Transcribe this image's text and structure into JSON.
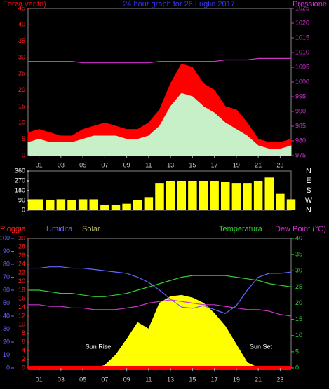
{
  "chart_data": [
    {
      "type": "line",
      "title": "24 hour graph for 26 Luglio 2017",
      "y_label": "Forza vento)",
      "y2_label": "Pressione",
      "x": [
        0,
        1,
        2,
        3,
        4,
        5,
        6,
        7,
        8,
        9,
        10,
        11,
        12,
        13,
        14,
        15,
        16,
        17,
        18,
        19,
        20,
        21,
        22,
        23,
        24
      ],
      "xlim": [
        0,
        24
      ],
      "xticks": [
        {
          "value": 1,
          "label": "01"
        },
        {
          "value": 3,
          "label": "03"
        },
        {
          "value": 5,
          "label": "05"
        },
        {
          "value": 7,
          "label": "07"
        },
        {
          "value": 9,
          "label": "09"
        },
        {
          "value": 11,
          "label": "11"
        },
        {
          "value": 13,
          "label": "13"
        },
        {
          "value": 15,
          "label": "15"
        },
        {
          "value": 17,
          "label": "17"
        },
        {
          "value": 19,
          "label": "19"
        },
        {
          "value": 21,
          "label": "21"
        },
        {
          "value": 23,
          "label": "23"
        }
      ],
      "ylim": [
        0,
        45
      ],
      "yticks": [
        0,
        5,
        10,
        15,
        20,
        25,
        30,
        35,
        40,
        45
      ],
      "y2lim": [
        975,
        1025
      ],
      "y2ticks": [
        975,
        980,
        985,
        990,
        995,
        1000,
        1005,
        1010,
        1015,
        1020,
        1025
      ],
      "series": [
        {
          "type": "area",
          "color": "#ff0000",
          "values": [
            7,
            8,
            7,
            6,
            6,
            8,
            9,
            10,
            9,
            8,
            8,
            10,
            14,
            22,
            28,
            27,
            22,
            20,
            15,
            14,
            10,
            5,
            4,
            4,
            5
          ]
        },
        {
          "type": "area",
          "color": "#c8f0c8",
          "values": [
            4,
            5,
            4,
            4,
            4,
            5,
            6,
            6,
            6,
            5,
            5,
            6,
            9,
            15,
            19,
            18,
            15,
            13,
            10,
            8,
            6,
            3,
            2,
            2,
            3
          ]
        },
        {
          "type": "line",
          "axis": "y2",
          "color": "#cc33cc",
          "values": [
            1007,
            1007,
            1007,
            1007,
            1007,
            1006.5,
            1006.5,
            1006.5,
            1006.5,
            1006.5,
            1006.5,
            1006.5,
            1007,
            1007,
            1007,
            1007,
            1007,
            1007,
            1007.5,
            1007.5,
            1007.5,
            1008,
            1008,
            1008,
            1008
          ]
        }
      ]
    },
    {
      "type": "bar",
      "compass_labels": [
        "N",
        "W",
        "S",
        "E",
        "N"
      ],
      "x": [
        0,
        1,
        2,
        3,
        4,
        5,
        6,
        7,
        8,
        9,
        10,
        11,
        12,
        13,
        14,
        15,
        16,
        17,
        18,
        19,
        20,
        21,
        22,
        23,
        24
      ],
      "xlim": [
        0,
        24
      ],
      "ylim": [
        0,
        360
      ],
      "yticks": [
        0,
        90,
        180,
        270,
        360
      ],
      "series": [
        {
          "type": "bar",
          "color": "#ffff00",
          "values": [
            100,
            100,
            95,
            100,
            90,
            100,
            100,
            50,
            50,
            60,
            90,
            120,
            250,
            270,
            270,
            270,
            270,
            270,
            260,
            250,
            250,
            270,
            300,
            150,
            100
          ]
        }
      ]
    },
    {
      "type": "line",
      "rain_label": "Pioggia",
      "y_label": "Umidita",
      "solar_label": "Solar",
      "y2_label": "Temperatura",
      "dew_label": "Dew Point (°C)",
      "annotations": [
        "Sun Rise",
        "Sun Set"
      ],
      "x": [
        0,
        1,
        2,
        3,
        4,
        5,
        6,
        7,
        8,
        9,
        10,
        11,
        12,
        13,
        14,
        15,
        16,
        17,
        18,
        19,
        20,
        21,
        22,
        23,
        24
      ],
      "xlim": [
        0,
        24
      ],
      "xticks": [
        {
          "value": 1,
          "label": "01"
        },
        {
          "value": 3,
          "label": "03"
        },
        {
          "value": 5,
          "label": "05"
        },
        {
          "value": 7,
          "label": "07"
        },
        {
          "value": 9,
          "label": "09"
        },
        {
          "value": 11,
          "label": "11"
        },
        {
          "value": 13,
          "label": "13"
        },
        {
          "value": 15,
          "label": "15"
        },
        {
          "value": 17,
          "label": "17"
        },
        {
          "value": 19,
          "label": "19"
        },
        {
          "value": 21,
          "label": "21"
        },
        {
          "value": 23,
          "label": "23"
        }
      ],
      "ylim": [
        0,
        100
      ],
      "yticks": [
        0,
        10,
        20,
        30,
        40,
        50,
        60,
        70,
        80,
        90,
        100
      ],
      "rain_ylim": [
        0,
        30
      ],
      "rain_yticks": [
        0,
        2,
        4,
        6,
        8,
        10,
        12,
        14,
        16,
        18,
        20,
        22,
        24,
        26,
        28,
        30
      ],
      "y2lim": [
        0,
        40
      ],
      "y2ticks": [
        0,
        5,
        10,
        15,
        20,
        25,
        30,
        35,
        40
      ],
      "series": [
        {
          "type": "area",
          "color": "#ffff00",
          "values": [
            0,
            0,
            0,
            0,
            0,
            0,
            0,
            2,
            10,
            22,
            35,
            30,
            50,
            55,
            56,
            54,
            50,
            42,
            32,
            18,
            4,
            0,
            0,
            0,
            0
          ]
        },
        {
          "type": "line",
          "axis": "rain",
          "color": "#ff0000",
          "width": 6,
          "values": [
            0,
            0,
            0,
            0,
            0,
            0,
            0,
            0,
            0,
            0,
            0,
            0,
            0,
            0,
            0,
            0,
            0,
            0,
            0,
            0,
            0,
            0,
            0,
            0,
            0
          ]
        },
        {
          "type": "line",
          "color": "#6666ff",
          "values": [
            77,
            77,
            78,
            78,
            77,
            77,
            76,
            75,
            74,
            73,
            70,
            66,
            60,
            53,
            47,
            46,
            48,
            45,
            42,
            48,
            60,
            70,
            73,
            73,
            74
          ]
        },
        {
          "type": "line",
          "axis": "y2",
          "color": "#33cc33",
          "values": [
            24,
            24,
            23.5,
            23,
            23,
            22.5,
            22,
            22,
            22.5,
            23,
            24,
            25,
            26,
            27,
            28,
            28.5,
            28.5,
            28.5,
            28.5,
            28,
            27.5,
            27,
            26,
            25.5,
            25
          ]
        },
        {
          "type": "line",
          "axis": "y2",
          "color": "#cc33cc",
          "values": [
            19.5,
            19.5,
            19,
            19,
            18.5,
            18.5,
            18,
            18,
            18,
            18.5,
            19,
            20,
            20.5,
            21,
            20.5,
            20,
            19.5,
            19.5,
            19,
            18.5,
            18,
            18,
            17.5,
            16.5,
            16
          ]
        }
      ]
    }
  ]
}
